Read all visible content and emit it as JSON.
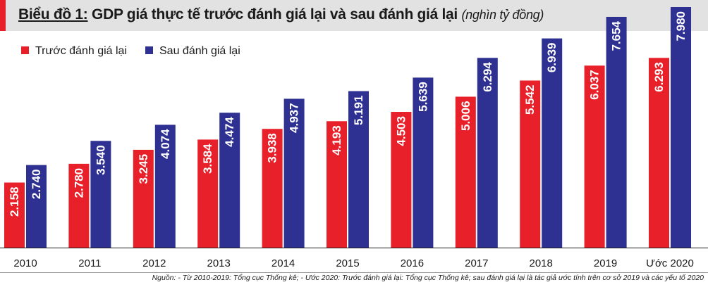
{
  "header": {
    "title_lead": "Biểu đồ 1:",
    "title_main": " GDP giá thực tế trước đánh giá lại và sau đánh giá lại ",
    "title_unit": "(nghìn tỷ đồng)"
  },
  "source_note": "Nguồn: - Từ 2010-2019: Tổng cục Thống kê; - Ước 2020: Trước đánh giá lại: Tổng cục Thống kê; sau đánh giá lại là tác giả ước tính trên cơ sở 2019 và các yếu tố 2020",
  "colors": {
    "before": "#e8202a",
    "after": "#2e3192",
    "title_accent": "#e8202a",
    "title_bar": "#e2e2e2"
  },
  "chart_data": {
    "type": "bar",
    "title": "GDP giá thực tế trước đánh giá lại và sau đánh giá lại",
    "categories": [
      "2010",
      "2011",
      "2012",
      "2013",
      "2014",
      "2015",
      "2016",
      "2017",
      "2018",
      "2019",
      "Ước 2020"
    ],
    "series": [
      {
        "name": "Trước đánh giá lại",
        "values": [
          2158,
          2780,
          3245,
          3584,
          3938,
          4193,
          4503,
          5006,
          5542,
          6037,
          6293
        ],
        "labels": [
          "2.158",
          "2.780",
          "3.245",
          "3.584",
          "3.938",
          "4.193",
          "4.503",
          "5.006",
          "5.542",
          "6.037",
          "6.293"
        ]
      },
      {
        "name": "Sau đánh giá lại",
        "values": [
          2740,
          3540,
          4074,
          4474,
          4937,
          5191,
          5639,
          6294,
          6939,
          7654,
          7980
        ],
        "labels": [
          "2.740",
          "3.540",
          "4.074",
          "4.474",
          "4.937",
          "5.191",
          "5.639",
          "6.294",
          "6.939",
          "7.654",
          "7.980"
        ]
      }
    ],
    "ylim": [
      0,
      7980
    ],
    "legend": "top-left",
    "grid": false
  }
}
